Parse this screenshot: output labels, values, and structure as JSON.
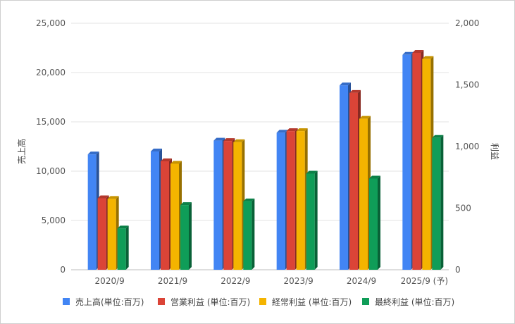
{
  "chart_data": {
    "type": "bar",
    "title": "",
    "xlabel": "",
    "ylabel_left": "売上高",
    "ylabel_right": "利益",
    "categories": [
      "2020/9",
      "2021/9",
      "2022/9",
      "2023/9",
      "2024/9",
      "2025/9 (予)"
    ],
    "ylim_left": [
      0,
      25000
    ],
    "ylim_right": [
      0,
      2000
    ],
    "yticks_left": [
      "0",
      "5,000",
      "10,000",
      "15,000",
      "20,000",
      "25,000"
    ],
    "yticks_right": [
      "0",
      "500",
      "1,000",
      "1,500",
      "2,000"
    ],
    "grid": true,
    "legend_position": "bottom",
    "series": [
      {
        "name": "売上高(単位:百万)",
        "axis": "left",
        "color": "#4285f4",
        "values": [
          11700,
          12000,
          13100,
          13900,
          18700,
          21800
        ]
      },
      {
        "name": "営業利益 (単位:百万)",
        "axis": "right",
        "color": "#db4437",
        "values": [
          580,
          880,
          1045,
          1125,
          1435,
          1760
        ]
      },
      {
        "name": "経常利益 (単位:百万)",
        "axis": "right",
        "color": "#f4b400",
        "values": [
          575,
          860,
          1035,
          1125,
          1225,
          1710
        ]
      },
      {
        "name": "最終利益 (単位:百万)",
        "axis": "right",
        "color": "#0f9d58",
        "values": [
          335,
          525,
          555,
          780,
          740,
          1070
        ]
      }
    ]
  }
}
